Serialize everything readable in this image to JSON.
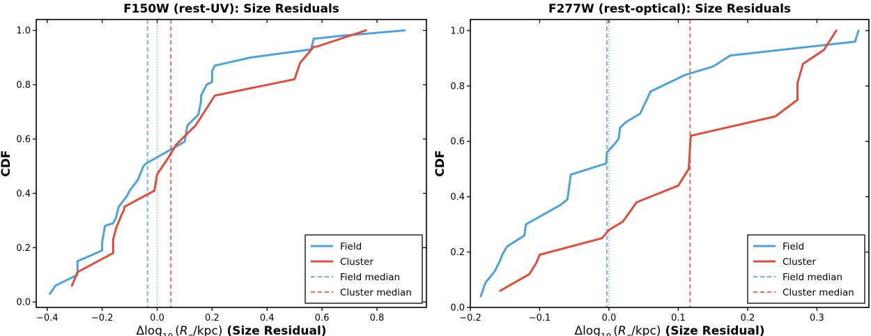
{
  "chart_data": [
    {
      "type": "line",
      "title": "F150W (rest-UV): Size Residuals",
      "xlabel": {
        "prefix": "Δlog",
        "sub": "10",
        "open": "(",
        "var": "R",
        "var_sub": "e",
        "unit": "/kpc)",
        "suffix": "(Size Residual)"
      },
      "ylabel": "CDF",
      "xlim": [
        -0.44,
        0.98
      ],
      "ylim": [
        -0.02,
        1.04
      ],
      "xticks": [
        -0.4,
        -0.2,
        0.0,
        0.2,
        0.4,
        0.6,
        0.8
      ],
      "xtick_labels": [
        "−0.4",
        "−0.2",
        "0.0",
        "0.2",
        "0.4",
        "0.6",
        "0.8"
      ],
      "yticks": [
        0.0,
        0.2,
        0.4,
        0.6,
        0.8,
        1.0
      ],
      "ytick_labels": [
        "0.0",
        "0.2",
        "0.4",
        "0.6",
        "0.8",
        "1.0"
      ],
      "zero_line": 0.0,
      "series": [
        {
          "name": "Field",
          "color": "#4aa3df",
          "x": [
            -0.39,
            -0.37,
            -0.29,
            -0.29,
            -0.2,
            -0.2,
            -0.19,
            -0.16,
            -0.15,
            -0.14,
            -0.11,
            -0.1,
            -0.07,
            -0.05,
            -0.04,
            0.1,
            0.11,
            0.15,
            0.16,
            0.16,
            0.17,
            0.18,
            0.2,
            0.2,
            0.21,
            0.34,
            0.56,
            0.57,
            0.58,
            0.67,
            0.9
          ],
          "y": [
            0.03,
            0.06,
            0.1,
            0.15,
            0.19,
            0.22,
            0.28,
            0.29,
            0.31,
            0.35,
            0.39,
            0.41,
            0.45,
            0.5,
            0.51,
            0.59,
            0.65,
            0.69,
            0.74,
            0.76,
            0.78,
            0.8,
            0.81,
            0.85,
            0.87,
            0.9,
            0.93,
            0.97,
            0.97,
            0.98,
            1.0
          ]
        },
        {
          "name": "Cluster",
          "color": "#e34b3b",
          "x": [
            -0.31,
            -0.29,
            -0.16,
            -0.16,
            -0.15,
            -0.13,
            -0.12,
            -0.12,
            -0.01,
            0.0,
            0.04,
            0.07,
            0.14,
            0.21,
            0.5,
            0.52,
            0.57,
            0.58,
            0.76
          ],
          "y": [
            0.06,
            0.11,
            0.18,
            0.23,
            0.27,
            0.32,
            0.34,
            0.35,
            0.41,
            0.47,
            0.53,
            0.58,
            0.65,
            0.76,
            0.82,
            0.88,
            0.94,
            0.94,
            1.0
          ]
        }
      ],
      "medians": [
        {
          "name": "Field median",
          "value": -0.035,
          "color": "#6cb6e8"
        },
        {
          "name": "Cluster median",
          "value": 0.05,
          "color": "#ec6a5e"
        }
      ],
      "legend_position": "bottom-right"
    },
    {
      "type": "line",
      "title": "F277W (rest-optical): Size Residuals",
      "xlabel": {
        "prefix": "Δlog",
        "sub": "10",
        "open": "(",
        "var": "R",
        "var_sub": "e",
        "unit": "/kpc)",
        "suffix": "(Size Residual)"
      },
      "ylabel": "CDF",
      "xlim": [
        -0.2,
        0.375
      ],
      "ylim": [
        0.0,
        1.04
      ],
      "xticks": [
        -0.2,
        -0.1,
        0.0,
        0.1,
        0.2,
        0.3
      ],
      "xtick_labels": [
        "−0.2",
        "−0.1",
        "0.0",
        "0.1",
        "0.2",
        "0.3"
      ],
      "yticks": [
        0.0,
        0.2,
        0.4,
        0.6,
        0.8,
        1.0
      ],
      "ytick_labels": [
        "0.0",
        "0.2",
        "0.4",
        "0.6",
        "0.8",
        "1.0"
      ],
      "zero_line": 0.0,
      "series": [
        {
          "name": "Field",
          "color": "#4aa3df",
          "x": [
            -0.185,
            -0.178,
            -0.165,
            -0.157,
            -0.154,
            -0.147,
            -0.122,
            -0.12,
            -0.07,
            -0.06,
            -0.055,
            -0.004,
            -0.003,
            0.008,
            0.014,
            0.016,
            0.025,
            0.045,
            0.06,
            0.11,
            0.15,
            0.175,
            0.355,
            0.36
          ],
          "y": [
            0.04,
            0.09,
            0.13,
            0.17,
            0.19,
            0.22,
            0.26,
            0.3,
            0.37,
            0.39,
            0.48,
            0.52,
            0.56,
            0.59,
            0.61,
            0.65,
            0.67,
            0.7,
            0.78,
            0.84,
            0.87,
            0.91,
            0.96,
            1.0
          ]
        },
        {
          "name": "Cluster",
          "color": "#e34b3b",
          "x": [
            -0.157,
            -0.115,
            -0.105,
            -0.1,
            -0.01,
            0.0,
            0.02,
            0.04,
            0.1,
            0.115,
            0.118,
            0.24,
            0.272,
            0.272,
            0.28,
            0.31,
            0.328
          ],
          "y": [
            0.06,
            0.12,
            0.16,
            0.19,
            0.25,
            0.28,
            0.31,
            0.38,
            0.44,
            0.5,
            0.62,
            0.69,
            0.75,
            0.81,
            0.88,
            0.93,
            1.0
          ]
        }
      ],
      "medians": [
        {
          "name": "Field median",
          "value": -0.003,
          "color": "#6cb6e8"
        },
        {
          "name": "Cluster median",
          "value": 0.117,
          "color": "#ec6a5e"
        }
      ],
      "legend_position": "bottom-right"
    }
  ]
}
